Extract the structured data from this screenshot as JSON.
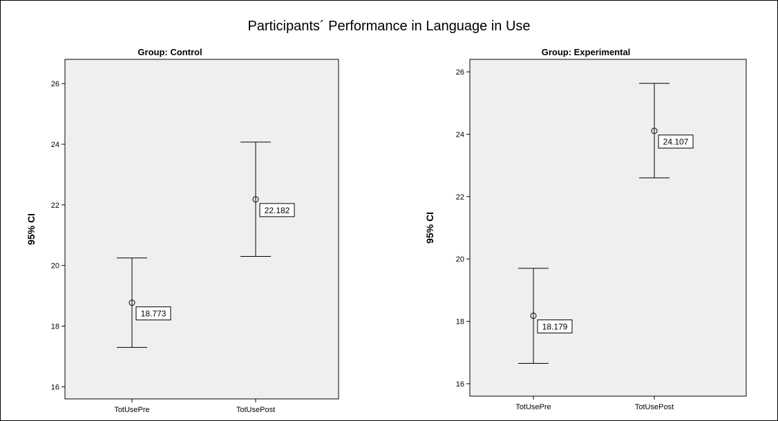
{
  "figure": {
    "title": "Participants´ Performance in Language in Use"
  },
  "chart_data": [
    {
      "type": "errorbar",
      "title": "Group: Control",
      "ylabel": "95% CI",
      "xlabel": "",
      "categories": [
        "TotUsePre",
        "TotUsePost"
      ],
      "ylim": [
        15.6,
        26.8
      ],
      "yticks": [
        16,
        18,
        20,
        22,
        24,
        26
      ],
      "grid": false,
      "points": [
        {
          "category": "TotUsePre",
          "mean": 18.773,
          "lower": 17.3,
          "upper": 20.25,
          "label": "18.773"
        },
        {
          "category": "TotUsePost",
          "mean": 22.182,
          "lower": 20.3,
          "upper": 24.07,
          "label": "22.182"
        }
      ]
    },
    {
      "type": "errorbar",
      "title": "Group: Experimental",
      "ylabel": "95% CI",
      "xlabel": "",
      "categories": [
        "TotUsePre",
        "TotUsePost"
      ],
      "ylim": [
        15.6,
        26.4
      ],
      "yticks": [
        16,
        18,
        20,
        22,
        24,
        26
      ],
      "grid": false,
      "points": [
        {
          "category": "TotUsePre",
          "mean": 18.179,
          "lower": 16.65,
          "upper": 19.7,
          "label": "18.179"
        },
        {
          "category": "TotUsePost",
          "mean": 24.107,
          "lower": 22.6,
          "upper": 25.63,
          "label": "24.107"
        }
      ]
    }
  ]
}
